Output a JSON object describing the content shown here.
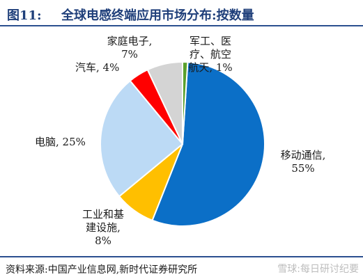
{
  "header": {
    "figure_label": "图11:",
    "title": "全球电感终端应用市场分布:按数量"
  },
  "footer": {
    "source": "资料来源:中国产业信息网,新时代证券研究所",
    "watermark": "雪球:每日研讨纪要"
  },
  "chart_data": {
    "type": "pie",
    "title": "全球电感终端应用市场分布:按数量",
    "slices": [
      {
        "label": "移动通信",
        "value": 55,
        "value_text": "55%",
        "color": "#0b6fc7"
      },
      {
        "label": "工业和基建设施",
        "value": 8,
        "value_text": "8%",
        "color": "#ffbf00"
      },
      {
        "label": "电脑",
        "value": 25,
        "value_text": "25%",
        "color": "#bcdaf5"
      },
      {
        "label": "汽车",
        "value": 4,
        "value_text": "4%",
        "color": "#ff0000"
      },
      {
        "label": "家庭电子",
        "value": 7,
        "value_text": "7%",
        "color": "#d4d4d4"
      },
      {
        "label": "军工、医疗、航空航天",
        "value": 1,
        "value_text": "1%",
        "color": "#5aa02c"
      }
    ],
    "labels": [
      {
        "lines": [
          "移动通信,",
          "55%"
        ]
      },
      {
        "lines": [
          "工业和基",
          "建设施,",
          "8%"
        ]
      },
      {
        "lines": [
          "电脑, 25%"
        ]
      },
      {
        "lines": [
          "汽车, 4%"
        ]
      },
      {
        "lines": [
          "家庭电子,",
          "7%"
        ]
      },
      {
        "lines": [
          "军工、医",
          "疗、航空",
          "航天, 1%"
        ]
      }
    ]
  }
}
